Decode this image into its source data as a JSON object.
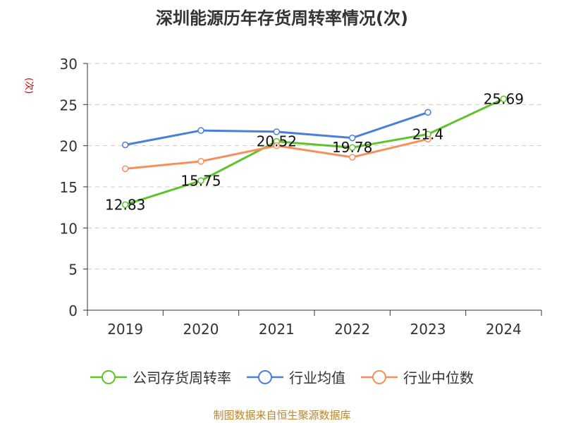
{
  "title": "深圳能源历年存货周转率情况(次)",
  "y_unit": "(次)",
  "source": "制图数据来自恒生聚源数据库",
  "chart_data": {
    "type": "line",
    "categories": [
      "2019",
      "2020",
      "2021",
      "2022",
      "2023",
      "2024"
    ],
    "ylim": [
      0,
      30
    ],
    "yticks": [
      0,
      5,
      10,
      15,
      20,
      25,
      30
    ],
    "grid": true,
    "legend_position": "bottom",
    "series": [
      {
        "name": "公司存货周转率",
        "color": "#5fc32b",
        "values": [
          12.83,
          15.75,
          20.52,
          19.78,
          21.4,
          25.69
        ],
        "labels": [
          "12.83",
          "15.75",
          "20.52",
          "19.78",
          "21.4",
          "25.69"
        ]
      },
      {
        "name": "行业均值",
        "color": "#4a7fd9",
        "values": [
          20.1,
          21.85,
          21.7,
          20.95,
          24.05,
          null
        ]
      },
      {
        "name": "行业中位数",
        "color": "#f5905c",
        "values": [
          17.2,
          18.1,
          20.0,
          18.6,
          20.8,
          null
        ]
      }
    ]
  }
}
